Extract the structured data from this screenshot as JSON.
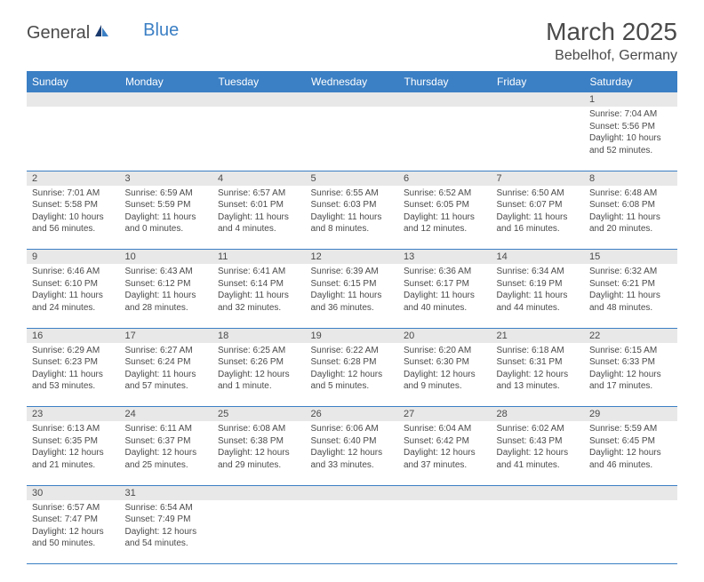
{
  "logo": {
    "general": "General",
    "blue": "Blue"
  },
  "title": "March 2025",
  "location": "Bebelhof, Germany",
  "colors": {
    "header_bg": "#3b7fc4",
    "header_text": "#ffffff",
    "daynum_bg": "#e8e8e8",
    "text": "#4a4a4a",
    "border": "#3b7fc4"
  },
  "weekdays": [
    "Sunday",
    "Monday",
    "Tuesday",
    "Wednesday",
    "Thursday",
    "Friday",
    "Saturday"
  ],
  "weeks": [
    [
      null,
      null,
      null,
      null,
      null,
      null,
      {
        "n": "1",
        "sr": "Sunrise: 7:04 AM",
        "ss": "Sunset: 5:56 PM",
        "dl": "Daylight: 10 hours and 52 minutes."
      }
    ],
    [
      {
        "n": "2",
        "sr": "Sunrise: 7:01 AM",
        "ss": "Sunset: 5:58 PM",
        "dl": "Daylight: 10 hours and 56 minutes."
      },
      {
        "n": "3",
        "sr": "Sunrise: 6:59 AM",
        "ss": "Sunset: 5:59 PM",
        "dl": "Daylight: 11 hours and 0 minutes."
      },
      {
        "n": "4",
        "sr": "Sunrise: 6:57 AM",
        "ss": "Sunset: 6:01 PM",
        "dl": "Daylight: 11 hours and 4 minutes."
      },
      {
        "n": "5",
        "sr": "Sunrise: 6:55 AM",
        "ss": "Sunset: 6:03 PM",
        "dl": "Daylight: 11 hours and 8 minutes."
      },
      {
        "n": "6",
        "sr": "Sunrise: 6:52 AM",
        "ss": "Sunset: 6:05 PM",
        "dl": "Daylight: 11 hours and 12 minutes."
      },
      {
        "n": "7",
        "sr": "Sunrise: 6:50 AM",
        "ss": "Sunset: 6:07 PM",
        "dl": "Daylight: 11 hours and 16 minutes."
      },
      {
        "n": "8",
        "sr": "Sunrise: 6:48 AM",
        "ss": "Sunset: 6:08 PM",
        "dl": "Daylight: 11 hours and 20 minutes."
      }
    ],
    [
      {
        "n": "9",
        "sr": "Sunrise: 6:46 AM",
        "ss": "Sunset: 6:10 PM",
        "dl": "Daylight: 11 hours and 24 minutes."
      },
      {
        "n": "10",
        "sr": "Sunrise: 6:43 AM",
        "ss": "Sunset: 6:12 PM",
        "dl": "Daylight: 11 hours and 28 minutes."
      },
      {
        "n": "11",
        "sr": "Sunrise: 6:41 AM",
        "ss": "Sunset: 6:14 PM",
        "dl": "Daylight: 11 hours and 32 minutes."
      },
      {
        "n": "12",
        "sr": "Sunrise: 6:39 AM",
        "ss": "Sunset: 6:15 PM",
        "dl": "Daylight: 11 hours and 36 minutes."
      },
      {
        "n": "13",
        "sr": "Sunrise: 6:36 AM",
        "ss": "Sunset: 6:17 PM",
        "dl": "Daylight: 11 hours and 40 minutes."
      },
      {
        "n": "14",
        "sr": "Sunrise: 6:34 AM",
        "ss": "Sunset: 6:19 PM",
        "dl": "Daylight: 11 hours and 44 minutes."
      },
      {
        "n": "15",
        "sr": "Sunrise: 6:32 AM",
        "ss": "Sunset: 6:21 PM",
        "dl": "Daylight: 11 hours and 48 minutes."
      }
    ],
    [
      {
        "n": "16",
        "sr": "Sunrise: 6:29 AM",
        "ss": "Sunset: 6:23 PM",
        "dl": "Daylight: 11 hours and 53 minutes."
      },
      {
        "n": "17",
        "sr": "Sunrise: 6:27 AM",
        "ss": "Sunset: 6:24 PM",
        "dl": "Daylight: 11 hours and 57 minutes."
      },
      {
        "n": "18",
        "sr": "Sunrise: 6:25 AM",
        "ss": "Sunset: 6:26 PM",
        "dl": "Daylight: 12 hours and 1 minute."
      },
      {
        "n": "19",
        "sr": "Sunrise: 6:22 AM",
        "ss": "Sunset: 6:28 PM",
        "dl": "Daylight: 12 hours and 5 minutes."
      },
      {
        "n": "20",
        "sr": "Sunrise: 6:20 AM",
        "ss": "Sunset: 6:30 PM",
        "dl": "Daylight: 12 hours and 9 minutes."
      },
      {
        "n": "21",
        "sr": "Sunrise: 6:18 AM",
        "ss": "Sunset: 6:31 PM",
        "dl": "Daylight: 12 hours and 13 minutes."
      },
      {
        "n": "22",
        "sr": "Sunrise: 6:15 AM",
        "ss": "Sunset: 6:33 PM",
        "dl": "Daylight: 12 hours and 17 minutes."
      }
    ],
    [
      {
        "n": "23",
        "sr": "Sunrise: 6:13 AM",
        "ss": "Sunset: 6:35 PM",
        "dl": "Daylight: 12 hours and 21 minutes."
      },
      {
        "n": "24",
        "sr": "Sunrise: 6:11 AM",
        "ss": "Sunset: 6:37 PM",
        "dl": "Daylight: 12 hours and 25 minutes."
      },
      {
        "n": "25",
        "sr": "Sunrise: 6:08 AM",
        "ss": "Sunset: 6:38 PM",
        "dl": "Daylight: 12 hours and 29 minutes."
      },
      {
        "n": "26",
        "sr": "Sunrise: 6:06 AM",
        "ss": "Sunset: 6:40 PM",
        "dl": "Daylight: 12 hours and 33 minutes."
      },
      {
        "n": "27",
        "sr": "Sunrise: 6:04 AM",
        "ss": "Sunset: 6:42 PM",
        "dl": "Daylight: 12 hours and 37 minutes."
      },
      {
        "n": "28",
        "sr": "Sunrise: 6:02 AM",
        "ss": "Sunset: 6:43 PM",
        "dl": "Daylight: 12 hours and 41 minutes."
      },
      {
        "n": "29",
        "sr": "Sunrise: 5:59 AM",
        "ss": "Sunset: 6:45 PM",
        "dl": "Daylight: 12 hours and 46 minutes."
      }
    ],
    [
      {
        "n": "30",
        "sr": "Sunrise: 6:57 AM",
        "ss": "Sunset: 7:47 PM",
        "dl": "Daylight: 12 hours and 50 minutes."
      },
      {
        "n": "31",
        "sr": "Sunrise: 6:54 AM",
        "ss": "Sunset: 7:49 PM",
        "dl": "Daylight: 12 hours and 54 minutes."
      },
      null,
      null,
      null,
      null,
      null
    ]
  ]
}
